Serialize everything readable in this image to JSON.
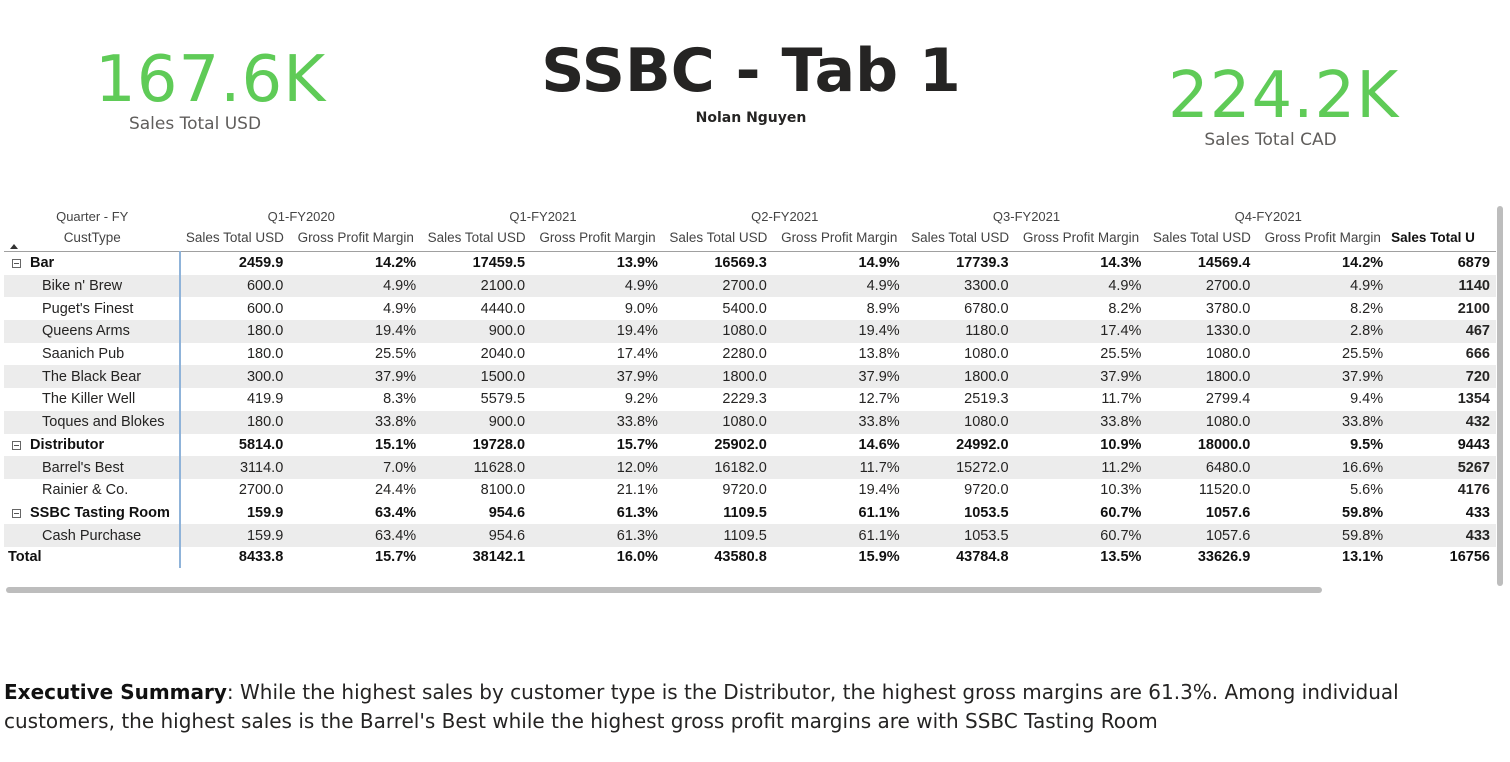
{
  "kpis": {
    "usd": {
      "value": "167.6K",
      "label": "Sales Total USD"
    },
    "cad": {
      "value": "224.2K",
      "label": "Sales Total CAD"
    }
  },
  "header": {
    "title": "SSBC - Tab 1",
    "author": "Nolan Nguyen"
  },
  "matrix": {
    "row_header": {
      "level1": "Quarter - FY",
      "level2": "CustType"
    },
    "quarters": [
      "Q1-FY2020",
      "Q1-FY2021",
      "Q2-FY2021",
      "Q3-FY2021",
      "Q4-FY2021"
    ],
    "measures": [
      "Sales Total USD",
      "Gross Profit Margin"
    ],
    "total_column_header": "Sales Total U",
    "rows": [
      {
        "type": "group",
        "label": "Bar",
        "cells": [
          "2459.9",
          "14.2%",
          "17459.5",
          "13.9%",
          "16569.3",
          "14.9%",
          "17739.3",
          "14.3%",
          "14569.4",
          "14.2%",
          "6879"
        ]
      },
      {
        "type": "child",
        "label": "Bike n' Brew",
        "cells": [
          "600.0",
          "4.9%",
          "2100.0",
          "4.9%",
          "2700.0",
          "4.9%",
          "3300.0",
          "4.9%",
          "2700.0",
          "4.9%",
          "1140"
        ]
      },
      {
        "type": "child",
        "label": "Puget's Finest",
        "cells": [
          "600.0",
          "4.9%",
          "4440.0",
          "9.0%",
          "5400.0",
          "8.9%",
          "6780.0",
          "8.2%",
          "3780.0",
          "8.2%",
          "2100"
        ]
      },
      {
        "type": "child",
        "label": "Queens Arms",
        "cells": [
          "180.0",
          "19.4%",
          "900.0",
          "19.4%",
          "1080.0",
          "19.4%",
          "1180.0",
          "17.4%",
          "1330.0",
          "2.8%",
          "467"
        ]
      },
      {
        "type": "child",
        "label": "Saanich Pub",
        "cells": [
          "180.0",
          "25.5%",
          "2040.0",
          "17.4%",
          "2280.0",
          "13.8%",
          "1080.0",
          "25.5%",
          "1080.0",
          "25.5%",
          "666"
        ]
      },
      {
        "type": "child",
        "label": "The Black Bear",
        "cells": [
          "300.0",
          "37.9%",
          "1500.0",
          "37.9%",
          "1800.0",
          "37.9%",
          "1800.0",
          "37.9%",
          "1800.0",
          "37.9%",
          "720"
        ]
      },
      {
        "type": "child",
        "label": "The Killer Well",
        "cells": [
          "419.9",
          "8.3%",
          "5579.5",
          "9.2%",
          "2229.3",
          "12.7%",
          "2519.3",
          "11.7%",
          "2799.4",
          "9.4%",
          "1354"
        ]
      },
      {
        "type": "child",
        "label": "Toques and Blokes",
        "cells": [
          "180.0",
          "33.8%",
          "900.0",
          "33.8%",
          "1080.0",
          "33.8%",
          "1080.0",
          "33.8%",
          "1080.0",
          "33.8%",
          "432"
        ]
      },
      {
        "type": "group",
        "label": "Distributor",
        "cells": [
          "5814.0",
          "15.1%",
          "19728.0",
          "15.7%",
          "25902.0",
          "14.6%",
          "24992.0",
          "10.9%",
          "18000.0",
          "9.5%",
          "9443"
        ]
      },
      {
        "type": "child",
        "label": "Barrel's Best",
        "cells": [
          "3114.0",
          "7.0%",
          "11628.0",
          "12.0%",
          "16182.0",
          "11.7%",
          "15272.0",
          "11.2%",
          "6480.0",
          "16.6%",
          "5267"
        ]
      },
      {
        "type": "child",
        "label": "Rainier & Co.",
        "cells": [
          "2700.0",
          "24.4%",
          "8100.0",
          "21.1%",
          "9720.0",
          "19.4%",
          "9720.0",
          "10.3%",
          "11520.0",
          "5.6%",
          "4176"
        ]
      },
      {
        "type": "group",
        "label": "SSBC Tasting Room",
        "cells": [
          "159.9",
          "63.4%",
          "954.6",
          "61.3%",
          "1109.5",
          "61.1%",
          "1053.5",
          "60.7%",
          "1057.6",
          "59.8%",
          "433"
        ]
      },
      {
        "type": "child",
        "label": "Cash Purchase",
        "cells": [
          "159.9",
          "63.4%",
          "954.6",
          "61.3%",
          "1109.5",
          "61.1%",
          "1053.5",
          "60.7%",
          "1057.6",
          "59.8%",
          "433"
        ]
      },
      {
        "type": "total",
        "label": "Total",
        "cells": [
          "8433.8",
          "15.7%",
          "38142.1",
          "16.0%",
          "43580.8",
          "15.9%",
          "43784.8",
          "13.5%",
          "33626.9",
          "13.1%",
          "16756"
        ]
      }
    ]
  },
  "summary": {
    "heading": "Executive Summary",
    "text": ": While the highest sales by customer type is the Distributor, the highest gross margins are 61.3%. Among individual customers, the highest sales is the Barrel's Best while the highest gross profit margins are with SSBC Tasting Room"
  }
}
